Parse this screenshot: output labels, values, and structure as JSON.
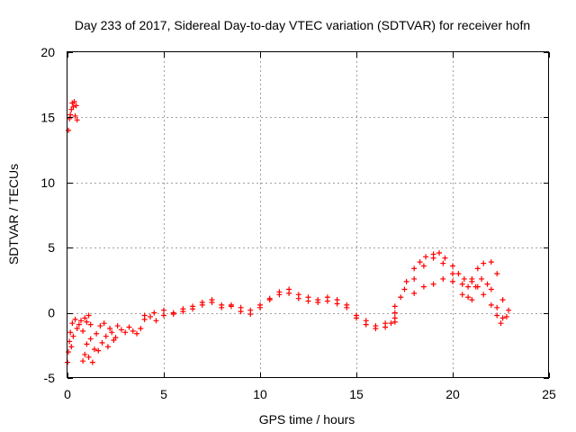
{
  "chart_data": {
    "type": "scatter",
    "title": "Day 233 of 2017, Sidereal Day-to-day VTEC variation (SDTVAR) for receiver hofn",
    "xlabel": "GPS time / hours",
    "ylabel": "SDTVAR / TECUs",
    "xlim": [
      0,
      25
    ],
    "ylim": [
      -5,
      20
    ],
    "xticks": [
      0,
      5,
      10,
      15,
      20,
      25
    ],
    "yticks": [
      -5,
      0,
      5,
      10,
      15,
      20
    ],
    "grid": true,
    "marker": "+",
    "colors": {
      "series": "#ff0000",
      "grid": "#a0a0a0",
      "axes": "#000000"
    },
    "series": [
      {
        "name": "SDTVAR",
        "segments": [
          {
            "x": [
              0.05,
              0.1,
              0.15,
              0.2,
              0.25,
              0.3,
              0.35,
              0.4,
              0.45,
              0.5
            ],
            "y": [
              14.0,
              14.9,
              15.2,
              15.6,
              16.1,
              15.8,
              16.2,
              15.1,
              15.9,
              14.8
            ]
          },
          {
            "x": [
              0.0,
              0.05,
              0.1,
              0.15,
              0.2,
              0.25,
              0.3,
              0.4,
              0.5,
              0.6,
              0.7,
              0.8,
              0.9,
              1.0,
              1.1,
              1.2
            ],
            "y": [
              -3.8,
              -3.0,
              -2.2,
              -1.5,
              -2.6,
              -0.8,
              -1.8,
              -0.5,
              -1.2,
              -0.9,
              -0.6,
              -1.4,
              -0.4,
              -0.7,
              -0.2,
              -0.9
            ]
          },
          {
            "x": [
              0.8,
              0.9,
              1.0,
              1.1,
              1.2,
              1.3,
              1.4,
              1.5,
              1.6,
              1.7,
              1.8,
              1.9,
              2.0,
              2.1,
              2.2,
              2.3,
              2.4,
              2.5,
              2.6,
              2.8,
              3.0,
              3.2,
              3.4,
              3.6,
              3.8
            ],
            "y": [
              -3.7,
              -3.2,
              -2.4,
              -3.4,
              -2.0,
              -3.8,
              -2.8,
              -1.6,
              -2.9,
              -1.0,
              -2.3,
              -0.8,
              -1.8,
              -2.6,
              -1.2,
              -1.5,
              -2.1,
              -1.9,
              -1.0,
              -1.3,
              -1.5,
              -1.1,
              -1.4,
              -1.6,
              -1.2
            ]
          },
          {
            "x": [
              4.0,
              4.3,
              4.6,
              5.0,
              5.5,
              6.0,
              6.5,
              7.0,
              7.5,
              8.0,
              8.5,
              9.0,
              9.5,
              10.0,
              10.5,
              11.0,
              11.5,
              12.0,
              12.5,
              13.0,
              13.5,
              14.0,
              14.5,
              15.0,
              15.5,
              16.0,
              16.5,
              17.0
            ],
            "y": [
              -0.5,
              -0.3,
              -0.6,
              -0.2,
              -0.1,
              0.1,
              0.3,
              0.6,
              0.8,
              0.4,
              0.5,
              0.1,
              0.2,
              0.6,
              1.1,
              1.4,
              1.5,
              1.1,
              0.9,
              0.8,
              0.9,
              0.7,
              0.4,
              -0.4,
              -0.9,
              -1.2,
              -1.1,
              -0.7
            ]
          },
          {
            "x": [
              4.0,
              4.5,
              5.0,
              5.5,
              6.0,
              6.5,
              7.0,
              7.5,
              8.0,
              8.5,
              9.0,
              9.5,
              10.0,
              10.5,
              11.0,
              11.5,
              12.0,
              12.5,
              13.0,
              13.5,
              14.0,
              14.5,
              15.0,
              15.5,
              16.0,
              16.5,
              17.0
            ],
            "y": [
              -0.2,
              0.0,
              0.2,
              0.0,
              0.3,
              0.5,
              0.8,
              1.0,
              0.6,
              0.6,
              0.4,
              -0.1,
              0.4,
              1.0,
              1.6,
              1.8,
              1.4,
              1.2,
              1.0,
              1.2,
              1.0,
              0.6,
              -0.2,
              -0.6,
              -1.0,
              -0.8,
              -0.4
            ]
          },
          {
            "x": [
              16.8,
              17.0,
              17.3,
              17.6,
              18.0,
              18.3,
              18.6,
              19.0,
              19.3,
              19.6,
              20.0,
              20.3,
              20.6,
              21.0,
              21.3,
              21.6,
              22.0,
              22.3,
              22.6,
              22.9
            ],
            "y": [
              -0.8,
              0.0,
              1.2,
              2.4,
              3.4,
              3.9,
              4.3,
              4.5,
              4.6,
              4.2,
              3.6,
              3.0,
              2.6,
              2.4,
              2.0,
              1.4,
              0.6,
              -0.2,
              -0.4,
              0.2
            ]
          },
          {
            "x": [
              17.0,
              17.5,
              18.0,
              18.5,
              19.0,
              19.5,
              20.0,
              20.5,
              20.8,
              21.0,
              21.3,
              21.6,
              22.0,
              22.3,
              22.6
            ],
            "y": [
              0.5,
              1.8,
              2.6,
              3.6,
              4.2,
              3.8,
              3.0,
              2.2,
              2.0,
              2.6,
              3.4,
              3.8,
              3.9,
              3.0,
              1.0
            ]
          },
          {
            "x": [
              18.0,
              18.5,
              19.0,
              19.5,
              20.0,
              20.5,
              20.8,
              21.0,
              21.2,
              21.5,
              21.8,
              22.0,
              22.3,
              22.5,
              22.8
            ],
            "y": [
              1.5,
              2.0,
              2.2,
              2.6,
              2.4,
              1.4,
              1.2,
              1.0,
              2.0,
              2.6,
              2.2,
              1.8,
              0.4,
              -0.8,
              -0.3
            ]
          }
        ]
      }
    ]
  }
}
